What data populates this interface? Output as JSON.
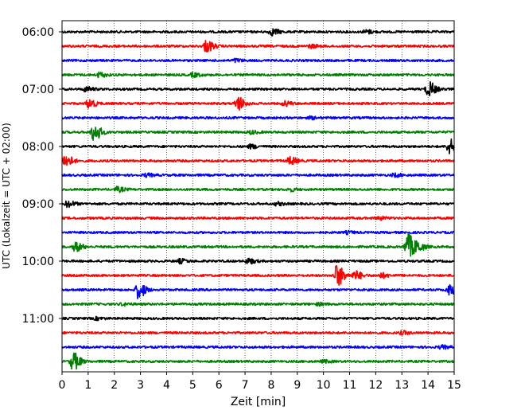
{
  "chart_data": {
    "type": "line",
    "title": "",
    "xlabel": "Zeit  [min]",
    "ylabel": "UTC (Lokalzeit = UTC + 02:00)",
    "xlim": [
      0,
      15
    ],
    "x_ticks": [
      "0",
      "1",
      "2",
      "3",
      "4",
      "5",
      "6",
      "7",
      "8",
      "9",
      "10",
      "11",
      "12",
      "13",
      "14",
      "15"
    ],
    "y_tick_labels": [
      "06:00",
      "07:00",
      "08:00",
      "09:00",
      "10:00",
      "11:00"
    ],
    "grid": "vertical dotted",
    "colors": [
      "#000000",
      "#ff0000",
      "#0000ff",
      "#008000"
    ],
    "series": [
      {
        "start": "06:00",
        "color": "#000000",
        "events": [
          {
            "t": 8.0,
            "a": 0.45
          },
          {
            "t": 11.6,
            "a": 0.25
          }
        ]
      },
      {
        "start": "06:15",
        "color": "#ff0000",
        "events": [
          {
            "t": 5.5,
            "a": 0.8
          },
          {
            "t": 9.5,
            "a": 0.2
          }
        ]
      },
      {
        "start": "06:30",
        "color": "#0000ff",
        "events": [
          {
            "t": 6.6,
            "a": 0.2
          }
        ]
      },
      {
        "start": "06:45",
        "color": "#008000",
        "events": [
          {
            "t": 1.4,
            "a": 0.3
          },
          {
            "t": 5.0,
            "a": 0.25
          }
        ]
      },
      {
        "start": "07:00",
        "color": "#000000",
        "events": [
          {
            "t": 0.9,
            "a": 0.3
          },
          {
            "t": 14.0,
            "a": 1.0
          }
        ]
      },
      {
        "start": "07:15",
        "color": "#ff0000",
        "events": [
          {
            "t": 1.0,
            "a": 0.6
          },
          {
            "t": 6.7,
            "a": 0.9
          },
          {
            "t": 8.5,
            "a": 0.3
          }
        ]
      },
      {
        "start": "07:30",
        "color": "#0000ff",
        "events": [
          {
            "t": 9.5,
            "a": 0.15
          }
        ]
      },
      {
        "start": "07:45",
        "color": "#008000",
        "events": [
          {
            "t": 1.2,
            "a": 1.2
          },
          {
            "t": 7.2,
            "a": 0.2
          }
        ]
      },
      {
        "start": "08:00",
        "color": "#000000",
        "events": [
          {
            "t": 7.2,
            "a": 0.25
          },
          {
            "t": 14.8,
            "a": 1.0
          }
        ]
      },
      {
        "start": "08:15",
        "color": "#ff0000",
        "events": [
          {
            "t": 0.1,
            "a": 0.9
          },
          {
            "t": 8.7,
            "a": 0.5
          }
        ]
      },
      {
        "start": "08:30",
        "color": "#0000ff",
        "events": [
          {
            "t": 3.2,
            "a": 0.2
          },
          {
            "t": 12.7,
            "a": 0.2
          }
        ]
      },
      {
        "start": "08:45",
        "color": "#008000",
        "events": [
          {
            "t": 2.1,
            "a": 0.3
          },
          {
            "t": 8.7,
            "a": 0.2
          }
        ]
      },
      {
        "start": "09:00",
        "color": "#000000",
        "events": [
          {
            "t": 0.2,
            "a": 0.4
          },
          {
            "t": 8.2,
            "a": 0.2
          }
        ]
      },
      {
        "start": "09:15",
        "color": "#ff0000",
        "events": [
          {
            "t": 12.1,
            "a": 0.2
          }
        ]
      },
      {
        "start": "09:30",
        "color": "#0000ff",
        "events": [
          {
            "t": 10.9,
            "a": 0.15
          }
        ]
      },
      {
        "start": "09:45",
        "color": "#008000",
        "events": [
          {
            "t": 0.5,
            "a": 0.6
          },
          {
            "t": 13.2,
            "a": 1.8
          },
          {
            "t": 13.6,
            "a": 0.5
          }
        ]
      },
      {
        "start": "10:00",
        "color": "#000000",
        "events": [
          {
            "t": 4.5,
            "a": 0.25
          },
          {
            "t": 7.1,
            "a": 0.35
          }
        ]
      },
      {
        "start": "10:15",
        "color": "#ff0000",
        "events": [
          {
            "t": 10.5,
            "a": 1.5
          },
          {
            "t": 11.2,
            "a": 0.6
          },
          {
            "t": 12.2,
            "a": 0.3
          }
        ]
      },
      {
        "start": "10:30",
        "color": "#0000ff",
        "events": [
          {
            "t": 2.9,
            "a": 1.1
          },
          {
            "t": 14.8,
            "a": 0.6
          }
        ]
      },
      {
        "start": "10:45",
        "color": "#008000",
        "events": [
          {
            "t": 2.3,
            "a": 0.15
          },
          {
            "t": 9.8,
            "a": 0.15
          }
        ]
      },
      {
        "start": "11:00",
        "color": "#000000",
        "events": [
          {
            "t": 1.3,
            "a": 0.15
          }
        ]
      },
      {
        "start": "11:15",
        "color": "#ff0000",
        "events": [
          {
            "t": 13.0,
            "a": 0.2
          }
        ]
      },
      {
        "start": "11:30",
        "color": "#0000ff",
        "events": [
          {
            "t": 14.5,
            "a": 0.2
          }
        ]
      },
      {
        "start": "11:45",
        "color": "#008000",
        "events": [
          {
            "t": 0.4,
            "a": 1.2
          },
          {
            "t": 10.0,
            "a": 0.15
          }
        ]
      }
    ]
  }
}
